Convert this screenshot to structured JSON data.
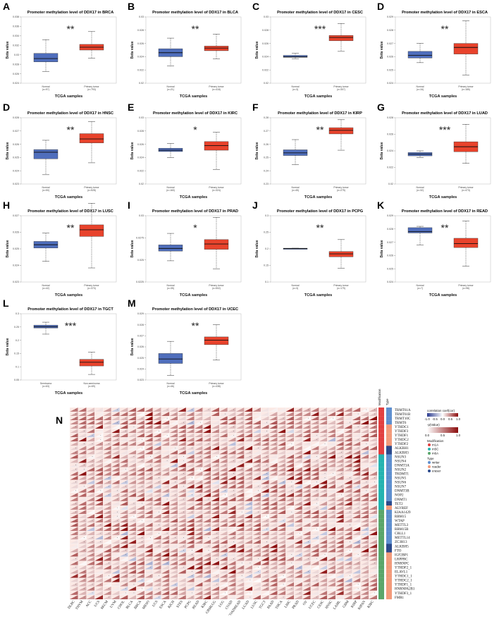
{
  "colors": {
    "normal": "#4f6ebc",
    "tumor": "#e8432c",
    "hm_low": "#2a3b8f",
    "hm_mid": "#ffffff",
    "hm_high": "#8b0d0d"
  },
  "chart_data": [
    {
      "type": "box",
      "letter": "A",
      "title": "Promoter methylation level of DDX17 in BRCA",
      "xlabel": "TCGA samples",
      "ylabel": "Beta value",
      "yticks": [
        "0.024",
        "0.026",
        "0.028",
        "0.03",
        "0.032",
        "0.034",
        "0.036",
        "0.038"
      ],
      "ylim": [
        0.024,
        0.038
      ],
      "groups": [
        {
          "name": "Normal",
          "n": "(n=97)",
          "min": 0.0265,
          "q1": 0.0285,
          "median": 0.0292,
          "q3": 0.0303,
          "max": 0.0332
        },
        {
          "name": "Primary tumor",
          "n": "(n=793)",
          "min": 0.0293,
          "q1": 0.031,
          "median": 0.0316,
          "q3": 0.0322,
          "max": 0.0349
        }
      ],
      "sig": "**"
    },
    {
      "type": "box",
      "letter": "B",
      "title": "Promoter methylation level of DDX17 in BLCA",
      "xlabel": "TCGA samples",
      "ylabel": "Beta value",
      "yticks": [
        "0.02",
        "0.022",
        "0.024",
        "0.026",
        "0.028",
        "0.03"
      ],
      "ylim": [
        0.02,
        0.03
      ],
      "groups": [
        {
          "name": "Normal",
          "n": "(n=21)",
          "min": 0.0226,
          "q1": 0.024,
          "median": 0.0246,
          "q3": 0.0252,
          "max": 0.0268
        },
        {
          "name": "Primary tumor",
          "n": "(n=418)",
          "min": 0.0237,
          "q1": 0.0249,
          "median": 0.0253,
          "q3": 0.0256,
          "max": 0.0274
        }
      ],
      "sig": "**"
    },
    {
      "type": "box",
      "letter": "C",
      "title": "Promoter methylation level of DDX17 in CESC",
      "xlabel": "TCGA samples",
      "ylabel": "Beta value",
      "yticks": [
        "0.02",
        "0.022",
        "0.024",
        "0.026",
        "0.028",
        "0.03"
      ],
      "ylim": [
        0.02,
        0.03
      ],
      "groups": [
        {
          "name": "Normal",
          "n": "(n=3)",
          "min": 0.0237,
          "q1": 0.0239,
          "median": 0.024,
          "q3": 0.0242,
          "max": 0.0245
        },
        {
          "name": "Primary tumor",
          "n": "(n=307)",
          "min": 0.0248,
          "q1": 0.0264,
          "median": 0.0269,
          "q3": 0.0272,
          "max": 0.029
        }
      ],
      "sig": "***"
    },
    {
      "type": "box",
      "letter": "D",
      "title": "Promoter methylation level of DDX17 in ESCA",
      "xlabel": "TCGA samples",
      "ylabel": "Beta value",
      "yticks": [
        "0.024",
        "0.025",
        "0.026",
        "0.027",
        "0.028",
        "0.029"
      ],
      "ylim": [
        0.024,
        0.029
      ],
      "groups": [
        {
          "name": "Normal",
          "n": "(n=16)",
          "min": 0.02555,
          "q1": 0.0259,
          "median": 0.0261,
          "q3": 0.0264,
          "max": 0.027
        },
        {
          "name": "Primary tumor",
          "n": "(n=185)",
          "min": 0.0246,
          "q1": 0.0262,
          "median": 0.0267,
          "q3": 0.027,
          "max": 0.0287
        }
      ],
      "sig": "**"
    },
    {
      "type": "box",
      "letter": "D",
      "title": "Promoter methylation level of DDX17 in HNSC",
      "xlabel": "TCGA samples",
      "ylabel": "Beta value",
      "yticks": [
        "0.023",
        "0.024",
        "0.025",
        "0.026",
        "0.027",
        "0.028"
      ],
      "ylim": [
        0.023,
        0.028
      ],
      "groups": [
        {
          "name": "Normal",
          "n": "(n=50)",
          "min": 0.0237,
          "q1": 0.0249,
          "median": 0.0254,
          "q3": 0.0256,
          "max": 0.0263
        },
        {
          "name": "Primary tumor",
          "n": "(n=528)",
          "min": 0.0246,
          "q1": 0.0261,
          "median": 0.0264,
          "q3": 0.0268,
          "max": 0.0277
        }
      ],
      "sig": "**"
    },
    {
      "type": "box",
      "letter": "E",
      "title": "Promoter methylation level of DDX17 in KIRC",
      "xlabel": "TCGA samples",
      "ylabel": "Beta value",
      "yticks": [
        "0.02",
        "0.022",
        "0.024",
        "0.026",
        "0.028",
        "0.03"
      ],
      "ylim": [
        0.02,
        0.03
      ],
      "groups": [
        {
          "name": "Normal",
          "n": "(n=160)",
          "min": 0.024,
          "q1": 0.0249,
          "median": 0.0251,
          "q3": 0.0254,
          "max": 0.0261
        },
        {
          "name": "Primary tumor",
          "n": "(n=324)",
          "min": 0.0222,
          "q1": 0.0251,
          "median": 0.0258,
          "q3": 0.0264,
          "max": 0.0278
        }
      ],
      "sig": "*"
    },
    {
      "type": "box",
      "letter": "F",
      "title": "Promoter methylation level of DDX17 in KIRP",
      "xlabel": "TCGA samples",
      "ylabel": "Beta value",
      "yticks": [
        "0.23",
        "0.24",
        "0.25",
        "0.26",
        "0.27",
        "0.28"
      ],
      "ylim": [
        0.23,
        0.28
      ],
      "groups": [
        {
          "name": "Normal",
          "n": "(n=45)",
          "min": 0.2445,
          "q1": 0.2515,
          "median": 0.2535,
          "q3": 0.2558,
          "max": 0.2635
        },
        {
          "name": "Primary tumor",
          "n": "(n=275)",
          "min": 0.2555,
          "q1": 0.2678,
          "median": 0.2705,
          "q3": 0.2725,
          "max": 0.2785
        }
      ],
      "sig": "**"
    },
    {
      "type": "box",
      "letter": "G",
      "title": "Promoter methylation level of DDX17 in LUAD",
      "xlabel": "TCGA samples",
      "ylabel": "Beta value",
      "yticks": [
        "0.02",
        "0.022",
        "0.024",
        "0.026",
        "0.028"
      ],
      "ylim": [
        0.02,
        0.028
      ],
      "groups": [
        {
          "name": "Normal",
          "n": "(n=32)",
          "min": 0.0232,
          "q1": 0.0234,
          "median": 0.0236,
          "q3": 0.0238,
          "max": 0.024
        },
        {
          "name": "Primary tumor",
          "n": "(n=473)",
          "min": 0.0225,
          "q1": 0.0239,
          "median": 0.0245,
          "q3": 0.0251,
          "max": 0.0272
        }
      ],
      "sig": "***"
    },
    {
      "type": "box",
      "letter": "H",
      "title": "Promoter methylation level of DDX17 in LUSC",
      "xlabel": "TCGA samples",
      "ylabel": "Beta value",
      "yticks": [
        "0.023",
        "0.024",
        "0.025",
        "0.026",
        "0.027"
      ],
      "ylim": [
        0.023,
        0.027
      ],
      "groups": [
        {
          "name": "Normal",
          "n": "(n=42)",
          "min": 0.02425,
          "q1": 0.02505,
          "median": 0.02525,
          "q3": 0.02545,
          "max": 0.02595
        },
        {
          "name": "Primary tumor",
          "n": "(n=370)",
          "min": 0.02385,
          "q1": 0.02575,
          "median": 0.02615,
          "q3": 0.02645,
          "max": 0.02775
        }
      ],
      "sig": "**"
    },
    {
      "type": "box",
      "letter": "I",
      "title": "Promoter methylation level of DDX17 in PRAD",
      "xlabel": "TCGA samples",
      "ylabel": "Beta value",
      "yticks": [
        "0.0225",
        "0.025",
        "0.0275",
        "0.03"
      ],
      "ylim": [
        0.0225,
        0.03
      ],
      "groups": [
        {
          "name": "Normal",
          "n": "(n=35)",
          "min": 0.0249,
          "q1": 0.026,
          "median": 0.0263,
          "q3": 0.0267,
          "max": 0.028
        },
        {
          "name": "Primary tumor",
          "n": "(n=502)",
          "min": 0.024,
          "q1": 0.0262,
          "median": 0.0268,
          "q3": 0.0273,
          "max": 0.0298
        }
      ],
      "sig": "*"
    },
    {
      "type": "box",
      "letter": "J",
      "title": "Promoter methylation level of DDX17 in PCPG",
      "xlabel": "TCGA samples",
      "ylabel": "Beta value",
      "yticks": [
        "0.1",
        "0.15",
        "0.2",
        "0.25",
        "0.3"
      ],
      "ylim": [
        0.1,
        0.3
      ],
      "groups": [
        {
          "name": "Normal",
          "n": "(n=3)",
          "min": 0.2,
          "q1": 0.2,
          "median": 0.201,
          "q3": 0.202,
          "max": 0.202
        },
        {
          "name": "Primary tumor",
          "n": "(n=179)",
          "min": 0.142,
          "q1": 0.176,
          "median": 0.185,
          "q3": 0.192,
          "max": 0.228
        }
      ],
      "sig": "**"
    },
    {
      "type": "box",
      "letter": "K",
      "title": "Promoter methylation level of DDX17 in READ",
      "xlabel": "TCGA samples",
      "ylabel": "Beta value",
      "yticks": [
        "0.024",
        "0.025",
        "0.026",
        "0.027",
        "0.028",
        "0.029"
      ],
      "ylim": [
        0.024,
        0.029
      ],
      "groups": [
        {
          "name": "Normal",
          "n": "(n=7)",
          "min": 0.0268,
          "q1": 0.0277,
          "median": 0.0278,
          "q3": 0.0281,
          "max": 0.0282
        },
        {
          "name": "Primary tumor",
          "n": "(n=98)",
          "min": 0.0252,
          "q1": 0.0266,
          "median": 0.0269,
          "q3": 0.0273,
          "max": 0.0286
        }
      ],
      "sig": "**"
    },
    {
      "type": "box",
      "letter": "L",
      "title": "Promoter methylation level of DDX17 in TGCT",
      "xlabel": "TCGA samples",
      "ylabel": "Beta value",
      "yticks": [
        "0.05",
        "0.1",
        "0.15",
        "0.2",
        "0.25",
        "0.3"
      ],
      "ylim": [
        0.05,
        0.3
      ],
      "groups": [
        {
          "name": "Seminoma",
          "n": "(n=63)",
          "min": 0.223,
          "q1": 0.246,
          "median": 0.251,
          "q3": 0.257,
          "max": 0.268
        },
        {
          "name": "Non-seminoma",
          "n": "(n=69)",
          "min": 0.071,
          "q1": 0.103,
          "median": 0.117,
          "q3": 0.128,
          "max": 0.155
        }
      ],
      "sig": "***"
    },
    {
      "type": "box",
      "letter": "M",
      "title": "Promoter methylation level of DDX17 in UCEC",
      "xlabel": "TCGA samples",
      "ylabel": "Beta value",
      "yticks": [
        "0.023",
        "0.024",
        "0.025",
        "0.026",
        "0.027",
        "0.028",
        "0.029"
      ],
      "ylim": [
        0.023,
        0.029
      ],
      "groups": [
        {
          "name": "Normal",
          "n": "(n=46)",
          "min": 0.0234,
          "q1": 0.0245,
          "median": 0.0249,
          "q3": 0.0254,
          "max": 0.0265
        },
        {
          "name": "Primary tumor",
          "n": "(n=438)",
          "min": 0.0248,
          "q1": 0.0262,
          "median": 0.0266,
          "q3": 0.0269,
          "max": 0.028
        }
      ],
      "sig": "**"
    }
  ],
  "heatmap": {
    "letter": "N",
    "type": "heatmap",
    "columns": [
      "DLBC",
      "THYM",
      "ACC",
      "UCS",
      "SKCM",
      "UVM",
      "CHOL",
      "BLCA",
      "BRCA",
      "MESO",
      "UCS",
      "ESCA",
      "KICH",
      "STES",
      "PCPG",
      "READ",
      "KIRC",
      "GBMLGG",
      "LGG",
      "COAD",
      "COADREAD",
      "LUAD",
      "LUSC",
      "TGCT",
      "PAAD",
      "THCA",
      "LIHC",
      "PRAD",
      "OV",
      "UCEC",
      "CESC",
      "HNSC",
      "LAML",
      "GBM",
      "KIRP",
      "KIPAN",
      "KIRC"
    ],
    "rows": [
      "TRMT61A",
      "TRMT61B",
      "TRMT10C",
      "TRMT6",
      "YTHDC1",
      "YTHDF3",
      "YTHDF1",
      "YTHDC2",
      "YTHDF2",
      "ALKBH1",
      "ALKBH3",
      "NSUN3",
      "NSUN4",
      "DNMT3A",
      "NSUN2",
      "TRDMT1",
      "NSUN5",
      "NSUN6",
      "NSUN7",
      "DNMT3B",
      "NOP2",
      "DNMT1",
      "TET2",
      "ALYREF",
      "KIAA1429",
      "RBM15",
      "WTAP",
      "METTL3",
      "RBM15B",
      "CBLL1",
      "METTL14",
      "ZC3H13",
      "ALKBH5",
      "FTO",
      "IGF2BP1",
      "LRPPRC",
      "HNRNPC",
      "YTHDF2_1",
      "ELAVL1",
      "YTHDC1_1",
      "YTHDC2_1",
      "YTHDF1_1",
      "HNRNPA2B1",
      "YTHDF3_1",
      "FMR1"
    ],
    "modification_title": "Modification",
    "type_title": "Type",
    "modification": [
      "m1A",
      "m1A",
      "m1A",
      "m1A",
      "m1A",
      "m1A",
      "m1A",
      "m1A",
      "m1A",
      "m1A",
      "m1A",
      "m5C",
      "m5C",
      "m5C",
      "m5C",
      "m5C",
      "m5C",
      "m5C",
      "m5C",
      "m5C",
      "m5C",
      "m5C",
      "m5C",
      "m5C",
      "m6A",
      "m6A",
      "m6A",
      "m6A",
      "m6A",
      "m6A",
      "m6A",
      "m6A",
      "m6A",
      "m6A",
      "m6A",
      "m6A",
      "m6A",
      "m6A",
      "m6A",
      "m6A",
      "m6A",
      "m6A",
      "m6A",
      "m6A",
      "m6A"
    ],
    "rtype": [
      "writer",
      "writer",
      "writer",
      "writer",
      "reader",
      "reader",
      "reader",
      "reader",
      "reader",
      "eraser",
      "eraser",
      "writer",
      "writer",
      "writer",
      "writer",
      "writer",
      "writer",
      "writer",
      "writer",
      "writer",
      "writer",
      "writer",
      "eraser",
      "reader",
      "writer",
      "writer",
      "writer",
      "writer",
      "writer",
      "writer",
      "writer",
      "writer",
      "eraser",
      "eraser",
      "reader",
      "reader",
      "reader",
      "reader",
      "reader",
      "reader",
      "reader",
      "reader",
      "reader",
      "reader",
      "reader"
    ],
    "legend": {
      "corr_title": "correlation coef(cor)",
      "corr_ticks": [
        "-1.0",
        "-0.5",
        "0.0",
        "0.5",
        "1.0"
      ],
      "p_title": "-p(Value)",
      "p_ticks": [
        "0.0",
        "0.5",
        "1.0"
      ],
      "mod_title": "Modification",
      "mod_items": [
        {
          "label": "m1A",
          "color": "#e24040"
        },
        {
          "label": "m5C",
          "color": "#25b3b0"
        },
        {
          "label": "m6A",
          "color": "#5aa66a"
        }
      ],
      "type_title": "Type",
      "type_items": [
        {
          "label": "writer",
          "color": "#5e8fcf"
        },
        {
          "label": "reader",
          "color": "#f29a7a"
        },
        {
          "label": "eraser",
          "color": "#2c4a8c"
        }
      ]
    }
  }
}
